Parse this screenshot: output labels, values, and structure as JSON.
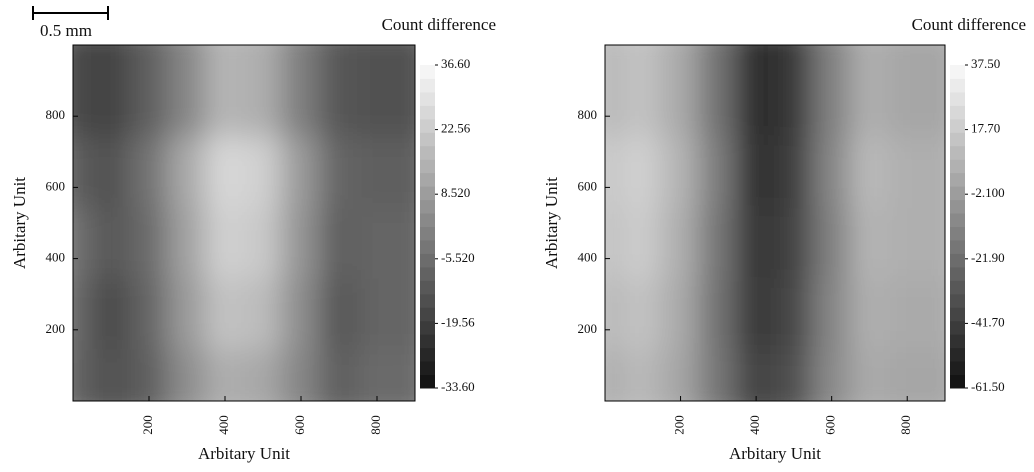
{
  "scale_bar_label": "0.5 mm",
  "chart_data": [
    {
      "type": "heatmap",
      "xlabel": "Arbitary Unit",
      "ylabel": "Arbitary Unit",
      "colorbar_title": "Count difference",
      "xlim": [
        0,
        900
      ],
      "ylim": [
        0,
        1000
      ],
      "xticks": [
        200,
        400,
        600,
        800
      ],
      "yticks": [
        200,
        400,
        600,
        800
      ],
      "x": [
        50,
        150,
        250,
        350,
        450,
        550,
        650,
        750,
        850
      ],
      "y": [
        100,
        300,
        500,
        700,
        900
      ],
      "z": [
        [
          -8,
          -14,
          -10,
          4,
          14,
          12,
          2,
          -10,
          -6
        ],
        [
          -6,
          -16,
          -8,
          8,
          20,
          18,
          4,
          -12,
          -8
        ],
        [
          -4,
          -12,
          -6,
          10,
          24,
          22,
          6,
          -10,
          -8
        ],
        [
          -10,
          -14,
          -4,
          12,
          26,
          24,
          8,
          -8,
          -10
        ],
        [
          -16,
          -18,
          -10,
          2,
          16,
          14,
          0,
          -12,
          -14
        ]
      ],
      "zlim": [
        -33.6,
        36.6
      ],
      "zticks": [
        {
          "value": -33.6,
          "label": "-33.60"
        },
        {
          "value": -19.56,
          "label": "-19.56"
        },
        {
          "value": -5.52,
          "label": "-5.520"
        },
        {
          "value": 8.52,
          "label": "8.520"
        },
        {
          "value": 22.56,
          "label": "22.56"
        },
        {
          "value": 36.6,
          "label": "36.60"
        }
      ]
    },
    {
      "type": "heatmap",
      "xlabel": "Arbitary Unit",
      "ylabel": "Arbitary Unit",
      "colorbar_title": "Count difference",
      "xlim": [
        0,
        900
      ],
      "ylim": [
        0,
        1000
      ],
      "xticks": [
        200,
        400,
        600,
        800
      ],
      "yticks": [
        200,
        400,
        600,
        800
      ],
      "x": [
        50,
        150,
        250,
        350,
        450,
        550,
        650,
        750,
        850
      ],
      "y": [
        100,
        300,
        500,
        700,
        900
      ],
      "z": [
        [
          6,
          10,
          2,
          -18,
          -40,
          -34,
          -10,
          4,
          2
        ],
        [
          10,
          14,
          4,
          -20,
          -44,
          -38,
          -12,
          6,
          4
        ],
        [
          14,
          18,
          6,
          -18,
          -46,
          -40,
          -14,
          8,
          6
        ],
        [
          16,
          20,
          8,
          -16,
          -48,
          -42,
          -12,
          10,
          6
        ],
        [
          10,
          14,
          4,
          -20,
          -50,
          -44,
          -14,
          6,
          2
        ]
      ],
      "zlim": [
        -61.5,
        37.5
      ],
      "zticks": [
        {
          "value": -61.5,
          "label": "-61.50"
        },
        {
          "value": -41.7,
          "label": "-41.70"
        },
        {
          "value": -21.9,
          "label": "-21.90"
        },
        {
          "value": -2.1,
          "label": "-2.100"
        },
        {
          "value": 17.7,
          "label": "17.70"
        },
        {
          "value": 37.5,
          "label": "37.50"
        }
      ]
    }
  ]
}
